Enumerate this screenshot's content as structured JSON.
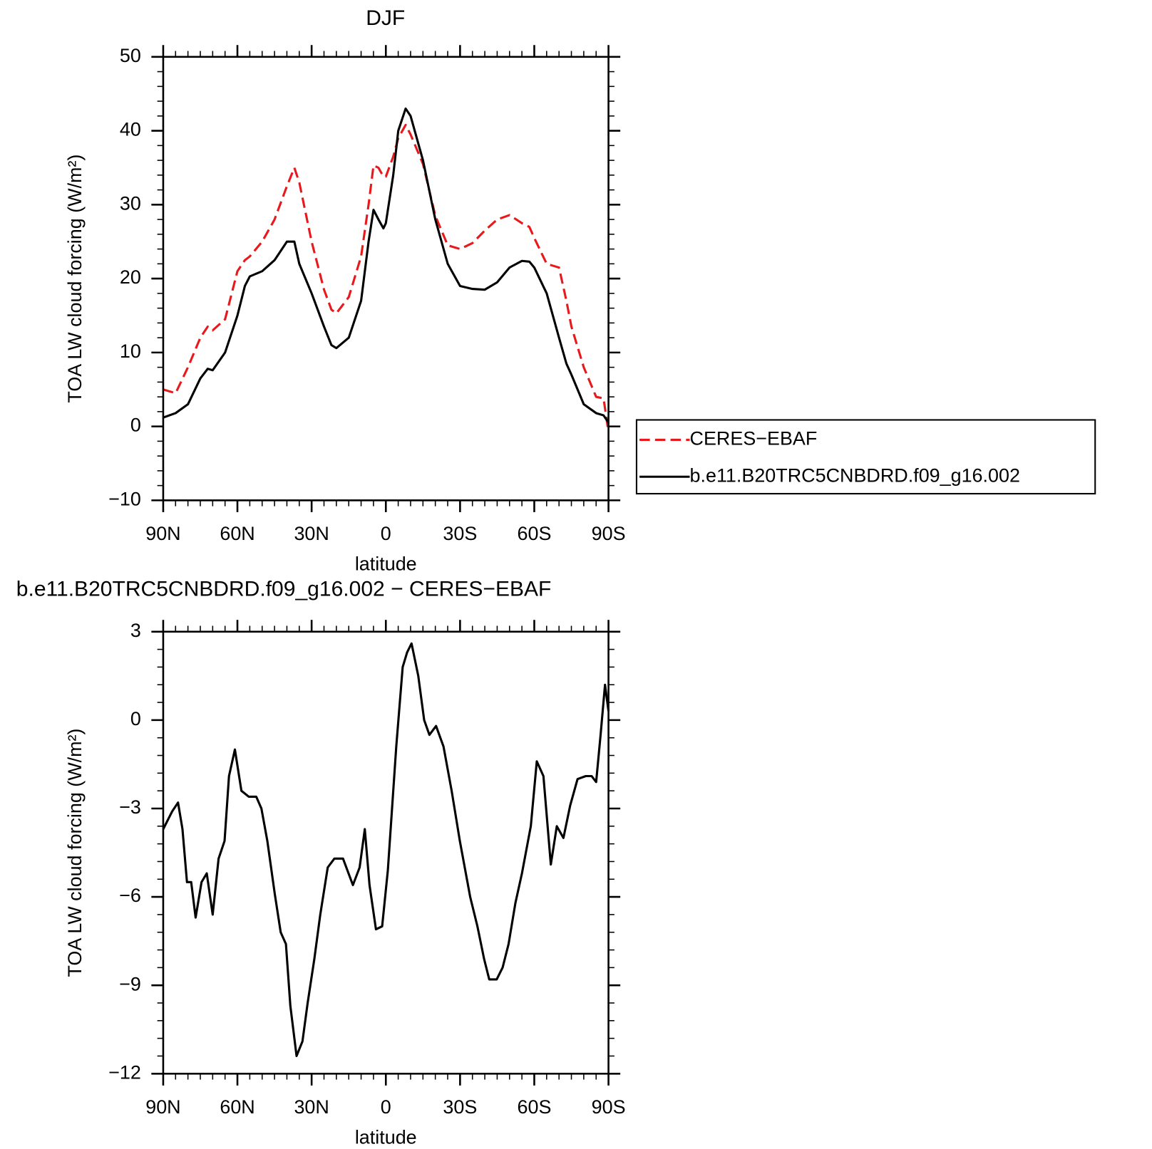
{
  "chart_data": [
    {
      "type": "line",
      "title": "DJF",
      "xlabel": "latitude",
      "ylabel": "TOA LW cloud forcing (W/m²)",
      "xlim": [
        90,
        -90
      ],
      "xticks": [
        {
          "value": 90,
          "label": "90N"
        },
        {
          "value": 60,
          "label": "60N"
        },
        {
          "value": 30,
          "label": "30N"
        },
        0,
        {
          "value": -30,
          "label": "30S"
        },
        {
          "value": -60,
          "label": "60S"
        },
        {
          "value": -90,
          "label": "90S"
        }
      ],
      "xminorticks": [
        85,
        80,
        75,
        70,
        65,
        55,
        50,
        45,
        40,
        35,
        25,
        20,
        15,
        10,
        5,
        -5,
        -10,
        -15,
        -20,
        -25,
        -35,
        -40,
        -45,
        -50,
        -55,
        -65,
        -70,
        -75,
        -80,
        -85
      ],
      "ylim": [
        -10,
        50
      ],
      "yticks": [
        {
          "value": -10,
          "label": "−10"
        },
        0,
        10,
        20,
        30,
        40,
        50
      ],
      "yminorticks": [
        -8,
        -6,
        -4,
        -2,
        2,
        4,
        6,
        8,
        12,
        14,
        16,
        18,
        22,
        24,
        26,
        28,
        32,
        34,
        36,
        38,
        42,
        44,
        46,
        48
      ],
      "legend": "right",
      "x": [
        90,
        85,
        80,
        75,
        72,
        70,
        65,
        60,
        57,
        55,
        50,
        45,
        40,
        37,
        35,
        30,
        25,
        22,
        20,
        15,
        10,
        7,
        5,
        3,
        1,
        0,
        -3,
        -5,
        -8,
        -10,
        -15,
        -20,
        -25,
        -30,
        -35,
        -40,
        -45,
        -50,
        -55,
        -58,
        -60,
        -65,
        -70,
        -73,
        -75,
        -80,
        -85,
        -88,
        -90
      ],
      "series": [
        {
          "name": "CERES−EBAF",
          "color": "#e8191c",
          "linestyle": "dashed",
          "values": [
            5,
            4.5,
            8,
            12,
            13.5,
            13,
            14.5,
            21,
            22.5,
            23,
            25,
            28,
            32.5,
            35,
            33,
            25,
            18.5,
            15.8,
            15.3,
            17.5,
            23,
            30,
            35.3,
            35,
            33.8,
            33.8,
            36.5,
            39,
            40.8,
            39.5,
            35.5,
            28.5,
            24.5,
            24,
            24.8,
            26.5,
            28,
            28.6,
            27.5,
            27,
            25.5,
            22,
            21.5,
            17,
            13.5,
            8,
            4,
            3.8,
            -0.8
          ]
        },
        {
          "name": "b.e11.B20TRC5CNBDRD.f09_g16.002",
          "color": "#000000",
          "linestyle": "solid",
          "values": [
            1.2,
            1.8,
            3,
            6.5,
            7.8,
            7.6,
            10,
            15,
            19,
            20.3,
            21,
            22.5,
            25,
            25,
            22,
            18,
            13.5,
            11,
            10.6,
            12,
            17,
            25,
            29.3,
            28,
            26.8,
            27.5,
            34,
            40,
            43,
            42,
            36,
            28,
            22,
            19,
            18.6,
            18.5,
            19.5,
            21.5,
            22.4,
            22.3,
            21.5,
            18,
            12,
            8.5,
            7,
            3,
            1.8,
            1.5,
            0.5
          ]
        }
      ]
    },
    {
      "type": "line",
      "title": "b.e11.B20TRC5CNBDRD.f09_g16.002 − CERES−EBAF",
      "xlabel": "latitude",
      "ylabel": "TOA LW cloud forcing (W/m²)",
      "xlim": [
        90,
        -90
      ],
      "xticks": [
        {
          "value": 90,
          "label": "90N"
        },
        {
          "value": 60,
          "label": "60N"
        },
        {
          "value": 30,
          "label": "30N"
        },
        0,
        {
          "value": -30,
          "label": "30S"
        },
        {
          "value": -60,
          "label": "60S"
        },
        {
          "value": -90,
          "label": "90S"
        }
      ],
      "xminorticks": [
        85,
        80,
        75,
        70,
        65,
        55,
        50,
        45,
        40,
        35,
        25,
        20,
        15,
        10,
        5,
        -5,
        -10,
        -15,
        -20,
        -25,
        -35,
        -40,
        -45,
        -50,
        -55,
        -65,
        -70,
        -75,
        -80,
        -85
      ],
      "ylim": [
        -12,
        3
      ],
      "yticks": [
        {
          "value": -12,
          "label": "−12"
        },
        {
          "value": -9,
          "label": "−9"
        },
        {
          "value": -6,
          "label": "−6"
        },
        {
          "value": -3,
          "label": "−3"
        },
        0,
        3
      ],
      "yminorticks": [
        2.4,
        1.8,
        1.2,
        0.6,
        -0.6,
        -1.2,
        -1.8,
        -2.4,
        -3.6,
        -4.2,
        -4.8,
        -5.4,
        -6.6,
        -7.2,
        -7.8,
        -8.4,
        -9.6,
        -10.2,
        -10.8,
        -11.4
      ],
      "x": [
        90,
        86.4,
        84,
        82.2,
        80.4,
        78.7,
        76.9,
        74.5,
        72.4,
        70,
        67.6,
        65.2,
        63.4,
        61,
        58.4,
        55.4,
        52.4,
        50.3,
        47.9,
        44.9,
        42.5,
        40.4,
        38.6,
        36.1,
        33.7,
        31.6,
        28.9,
        26.5,
        23.5,
        20.8,
        17.3,
        13.3,
        10.6,
        8.5,
        6.6,
        4,
        1.5,
        -0.8,
        -4.2,
        -6.8,
        -8.6,
        -10.4,
        -13.1,
        -15.5,
        -17.6,
        -20.3,
        -23.3,
        -26.6,
        -29.9,
        -34.1,
        -37,
        -39.7,
        -41.8,
        -44.8,
        -47.2,
        -49.6,
        -52.4,
        -55,
        -58.6,
        -61,
        -63.7,
        -66.7,
        -69.1,
        -71.8,
        -74.5,
        -77.5,
        -80.8,
        -83.2,
        -85,
        -86.8,
        -88.6,
        -90
      ],
      "series": [
        {
          "color": "#000000",
          "linestyle": "solid",
          "values": [
            -3.7,
            -3.1,
            -2.8,
            -3.7,
            -5.5,
            -5.5,
            -6.7,
            -5.5,
            -5.2,
            -6.6,
            -4.7,
            -4.1,
            -1.9,
            -1,
            -2.4,
            -2.6,
            -2.6,
            -3,
            -4.1,
            -5.9,
            -7.2,
            -7.6,
            -9.7,
            -11.4,
            -10.9,
            -9.6,
            -8.1,
            -6.6,
            -5,
            -4.7,
            -4.7,
            -5.6,
            -5,
            -3.7,
            -5.6,
            -7.1,
            -7,
            -5.1,
            -0.9,
            1.8,
            2.3,
            2.6,
            1.5,
            0,
            -0.5,
            -0.2,
            -0.9,
            -2.4,
            -4.1,
            -6,
            -7,
            -8.1,
            -8.8,
            -8.8,
            -8.4,
            -7.6,
            -6.2,
            -5.2,
            -3.6,
            -1.4,
            -1.9,
            -4.9,
            -3.6,
            -4,
            -2.9,
            -2,
            -1.9,
            -1.9,
            -2.1,
            -0.5,
            1.2,
            0.3
          ]
        }
      ]
    }
  ]
}
